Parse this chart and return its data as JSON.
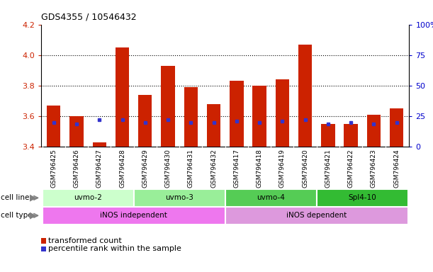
{
  "title": "GDS4355 / 10546432",
  "samples": [
    "GSM796425",
    "GSM796426",
    "GSM796427",
    "GSM796428",
    "GSM796429",
    "GSM796430",
    "GSM796431",
    "GSM796432",
    "GSM796417",
    "GSM796418",
    "GSM796419",
    "GSM796420",
    "GSM796421",
    "GSM796422",
    "GSM796423",
    "GSM796424"
  ],
  "transformed_count": [
    3.67,
    3.6,
    3.43,
    4.05,
    3.74,
    3.93,
    3.79,
    3.68,
    3.83,
    3.8,
    3.84,
    4.07,
    3.55,
    3.55,
    3.61,
    3.65
  ],
  "percentile_rank": [
    20,
    19,
    22,
    22,
    20,
    22,
    20,
    20,
    21,
    20,
    21,
    22,
    19,
    20,
    19,
    20
  ],
  "bar_bottom": 3.4,
  "ylim_left": [
    3.4,
    4.2
  ],
  "ylim_right": [
    0,
    100
  ],
  "yticks_left": [
    3.4,
    3.6,
    3.8,
    4.0,
    4.2
  ],
  "yticks_right": [
    0,
    25,
    50,
    75,
    100
  ],
  "bar_color": "#cc2200",
  "percentile_color": "#3333cc",
  "cell_line_groups": [
    {
      "label": "uvmo-2",
      "start": 0,
      "end": 3,
      "color": "#ccffcc"
    },
    {
      "label": "uvmo-3",
      "start": 4,
      "end": 7,
      "color": "#99ee99"
    },
    {
      "label": "uvmo-4",
      "start": 8,
      "end": 11,
      "color": "#55cc55"
    },
    {
      "label": "Spl4-10",
      "start": 12,
      "end": 15,
      "color": "#33bb33"
    }
  ],
  "cell_type_groups": [
    {
      "label": "iNOS independent",
      "start": 0,
      "end": 7,
      "color": "#ee77ee"
    },
    {
      "label": "iNOS dependent",
      "start": 8,
      "end": 15,
      "color": "#dd99dd"
    }
  ],
  "xtick_bg_color": "#d0d0d0",
  "grid_color": "#000000",
  "left_tick_color": "#cc2200",
  "right_tick_color": "#0000cc",
  "cell_line_label": "cell line",
  "cell_type_label": "cell type",
  "legend_red_label": "transformed count",
  "legend_blue_label": "percentile rank within the sample"
}
